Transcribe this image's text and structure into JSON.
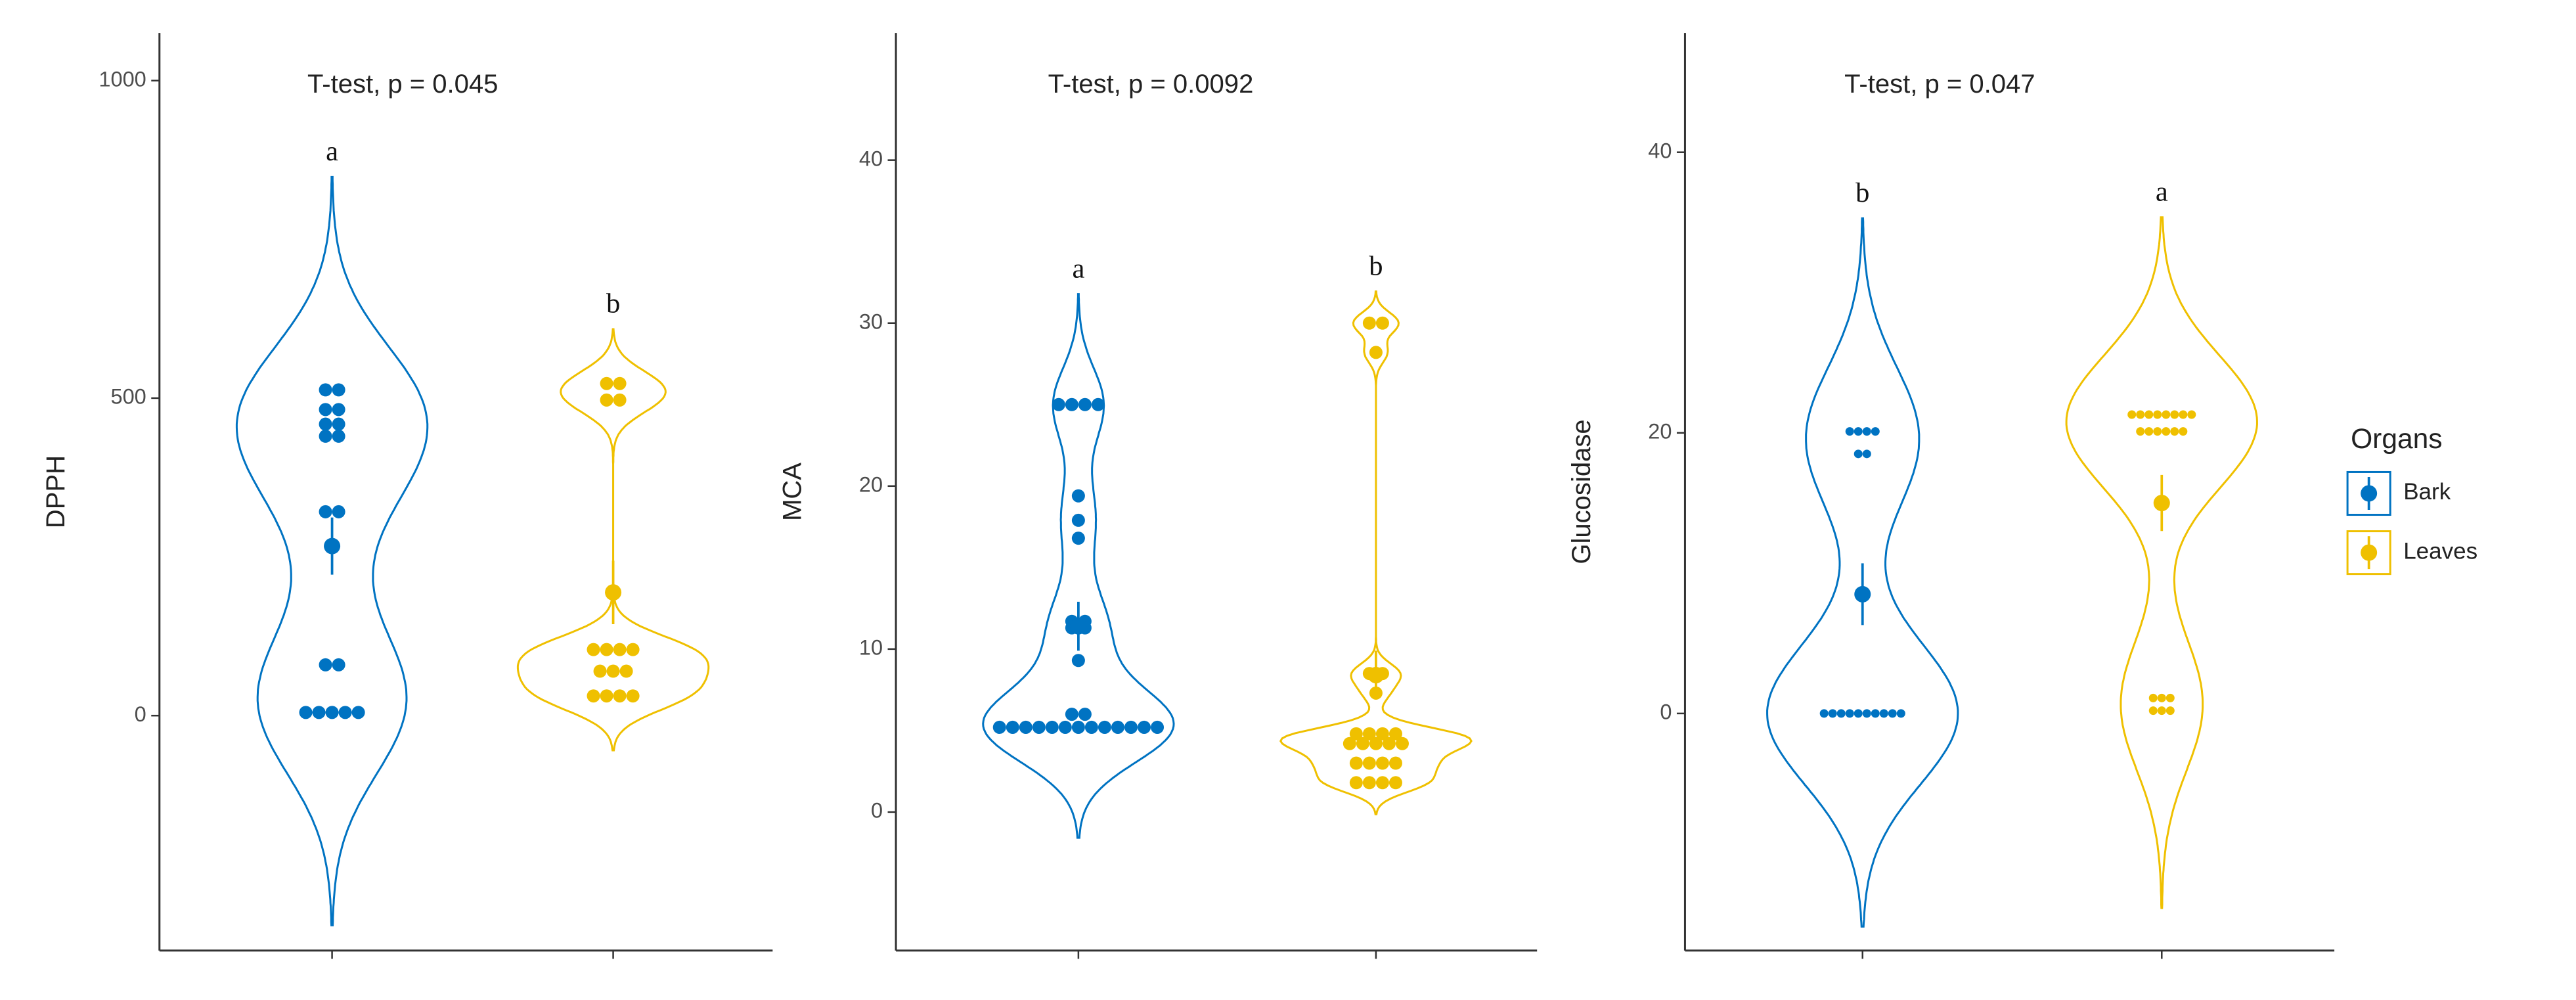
{
  "legend": {
    "title": "Organs",
    "entries": [
      {
        "name": "Bark",
        "color": "#0073c2"
      },
      {
        "name": "Leaves",
        "color": "#efc000"
      }
    ]
  },
  "chart_data": [
    {
      "type": "violin",
      "annotation": "T-test, p = 0.045",
      "ylabel": "DPPH",
      "ylim": [
        -370,
        1075
      ],
      "yticks": [
        0,
        500,
        1000
      ],
      "groups": [
        {
          "letter": "a",
          "values": [
            513,
            513,
            482,
            482,
            459,
            459,
            440,
            440,
            321,
            321,
            80,
            80,
            5,
            5,
            5,
            5,
            5
          ],
          "mean": 267,
          "error": 45
        },
        {
          "letter": "b",
          "values": [
            523,
            523,
            497,
            497,
            104,
            104,
            104,
            104,
            70,
            70,
            70,
            31,
            31,
            31,
            31
          ],
          "mean": 194,
          "error": 50
        }
      ]
    },
    {
      "type": "violin",
      "annotation": "T-test, p = 0.0092",
      "ylabel": "MCA",
      "ylim": [
        -8.5,
        47.8
      ],
      "yticks": [
        0,
        10,
        20,
        30,
        40
      ],
      "groups": [
        {
          "letter": "a",
          "values": [
            25,
            25,
            25,
            25,
            19.4,
            17.9,
            16.8,
            11.7,
            11.7,
            11.3,
            11.3,
            9.3,
            6,
            6,
            5.2,
            5.2,
            5.2,
            5.2,
            5.2,
            5.2,
            5.2,
            5.2,
            5.2,
            5.2,
            5.2,
            5.2,
            5.2
          ],
          "mean": 11.4,
          "error": 1.5
        },
        {
          "letter": "b",
          "values": [
            30,
            30,
            28.2,
            8.5,
            8.5,
            7.3,
            4.8,
            4.8,
            4.8,
            4.8,
            4.2,
            4.2,
            4.2,
            4.2,
            4.2,
            3,
            3,
            3,
            3,
            1.8,
            1.8,
            1.8,
            1.8
          ],
          "mean": 8.4,
          "error": 1.5
        }
      ]
    },
    {
      "type": "violin",
      "annotation": "T-test, p = 0.047",
      "ylabel": "Glucosidase",
      "ylim": [
        -16.9,
        48.5
      ],
      "yticks": [
        0,
        20,
        40
      ],
      "groups": [
        {
          "letter": "b",
          "values": [
            20.1,
            20.1,
            20.1,
            20.1,
            18.5,
            18.5,
            0,
            0,
            0,
            0,
            0,
            0,
            0,
            0,
            0,
            0
          ],
          "mean": 8.5,
          "error": 2.2
        },
        {
          "letter": "a",
          "values": [
            21.3,
            21.3,
            21.3,
            21.3,
            21.3,
            21.3,
            21.3,
            21.3,
            20.1,
            20.1,
            20.1,
            20.1,
            20.1,
            20.1,
            1.1,
            1.1,
            1.1,
            0.2,
            0.2,
            0.2
          ],
          "mean": 15,
          "error": 2
        }
      ]
    }
  ]
}
